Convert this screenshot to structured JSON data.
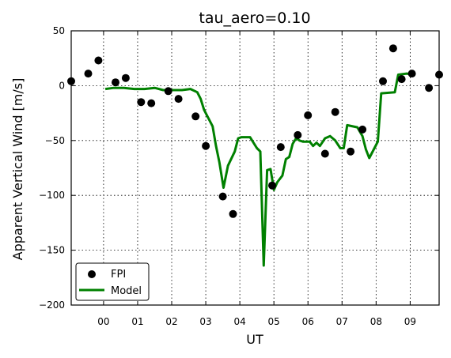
{
  "chart_data": {
    "type": "line",
    "title": "tau_aero=0.10",
    "xlabel": "UT",
    "ylabel": "Apparent Vertical Wind [m/s]",
    "xlim": [
      -0.95,
      9.85
    ],
    "ylim": [
      -200,
      50
    ],
    "x_ticks": [
      0,
      1,
      2,
      3,
      4,
      5,
      6,
      7,
      8,
      9
    ],
    "x_tick_labels": [
      "00",
      "01",
      "02",
      "03",
      "04",
      "05",
      "06",
      "07",
      "08",
      "09"
    ],
    "y_ticks": [
      -200,
      -150,
      -100,
      -50,
      0,
      50
    ],
    "y_tick_labels": [
      "−200",
      "−150",
      "−100",
      "−50",
      "0",
      "50"
    ],
    "grid": true,
    "legend": "lower-left",
    "series": [
      {
        "name": "FPI",
        "style": "markers",
        "color": "#000000",
        "x": [
          -0.95,
          -0.45,
          -0.15,
          0.35,
          0.65,
          1.1,
          1.4,
          1.9,
          2.2,
          2.7,
          3.0,
          3.5,
          3.8,
          4.95,
          5.2,
          5.7,
          6.0,
          6.5,
          6.8,
          7.25,
          7.6,
          8.2,
          8.5,
          8.75,
          9.05,
          9.55,
          9.85
        ],
        "y": [
          4,
          11,
          23,
          3,
          7,
          -15,
          -16,
          -5,
          -12,
          -28,
          -55,
          -101,
          -117,
          -91,
          -56,
          -45,
          -27,
          -62,
          -24,
          -60,
          -40,
          4,
          34,
          6,
          11,
          -2,
          10
        ]
      },
      {
        "name": "Model",
        "style": "line",
        "color": "#008000",
        "x": [
          0.05,
          0.3,
          0.6,
          0.9,
          1.2,
          1.5,
          1.75,
          2.0,
          2.3,
          2.55,
          2.75,
          2.85,
          2.95,
          3.05,
          3.2,
          3.3,
          3.4,
          3.52,
          3.65,
          3.85,
          3.95,
          4.05,
          4.3,
          4.5,
          4.6,
          4.7,
          4.8,
          4.9,
          5.0,
          5.1,
          5.25,
          5.35,
          5.45,
          5.55,
          5.65,
          5.75,
          5.85,
          6.05,
          6.15,
          6.25,
          6.35,
          6.5,
          6.65,
          6.8,
          6.95,
          7.05,
          7.15,
          7.45,
          7.6,
          7.7,
          7.8,
          7.95,
          8.05,
          8.15,
          8.55,
          8.65,
          8.9,
          9.15
        ],
        "y": [
          -3,
          -2,
          -2,
          -3,
          -3,
          -2,
          -4,
          -4,
          -4,
          -3,
          -6,
          -12,
          -22,
          -28,
          -37,
          -55,
          -70,
          -93,
          -73,
          -60,
          -48,
          -47,
          -47,
          -57,
          -60,
          -164,
          -77,
          -76,
          -95,
          -88,
          -82,
          -67,
          -65,
          -53,
          -48,
          -50,
          -51,
          -51,
          -55,
          -52,
          -55,
          -48,
          -46,
          -50,
          -57,
          -57,
          -36,
          -38,
          -46,
          -58,
          -66,
          -57,
          -51,
          -7,
          -6,
          10,
          11,
          10
        ]
      }
    ]
  }
}
